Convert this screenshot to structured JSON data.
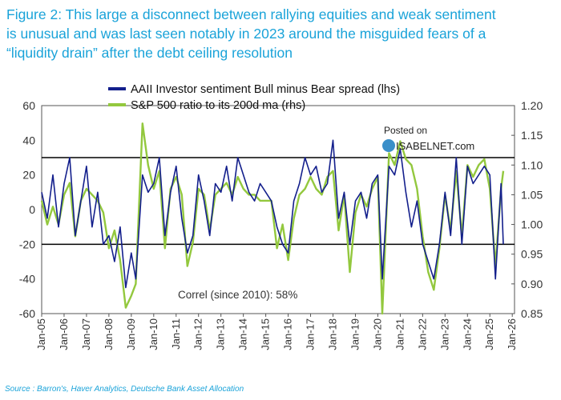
{
  "title_lines": [
    "Figure 2: This large a disconnect between rallying equities and weak sentiment",
    "is unusual and was last seen notably in 2023 around the misguided fears of a",
    "“liquidity drain” after the debt ceiling resolution"
  ],
  "source": "Source : Barron's, Haver Analytics, Deutsche Bank Asset Allocation",
  "watermark": {
    "line1": "Posted on",
    "line2": "ISABELNET.com"
  },
  "colors": {
    "title": "#1aa3d9",
    "bull_bear": "#131f8c",
    "sp500": "#93c83e",
    "ref_line": "#000000"
  },
  "chart_data": {
    "type": "line",
    "x_tick_labels": [
      "Jan-05",
      "Jan-06",
      "Jan-07",
      "Jan-08",
      "Jan-09",
      "Jan-10",
      "Jan-11",
      "Jan-12",
      "Jan-13",
      "Jan-14",
      "Jan-15",
      "Jan-16",
      "Jan-17",
      "Jan-18",
      "Jan-19",
      "Jan-20",
      "Jan-21",
      "Jan-22",
      "Jan-23",
      "Jan-24",
      "Jan-25",
      "Jan-26"
    ],
    "xlim": [
      2005,
      2026.1
    ],
    "y_left": {
      "lim": [
        -60,
        60
      ],
      "ticks": [
        "60",
        "40",
        "20",
        "0",
        "-20",
        "-40",
        "-60"
      ],
      "tick_values": [
        60,
        40,
        20,
        0,
        -20,
        -40,
        -60
      ]
    },
    "y_right": {
      "lim": [
        0.85,
        1.2
      ],
      "ticks": [
        "1.20",
        "1.15",
        "1.10",
        "1.05",
        "1.00",
        "0.95",
        "0.90",
        "0.85"
      ],
      "tick_values": [
        1.2,
        1.15,
        1.1,
        1.05,
        1.0,
        0.95,
        0.9,
        0.85
      ]
    },
    "reference_lines_left": [
      30,
      -20
    ],
    "annotation": "Correl (since 2010): 58%",
    "series": [
      {
        "name": "AAII Investor sentiment Bull minus Bear spread (lhs)",
        "axis": "left",
        "x": [
          2005.0,
          2005.25,
          2005.5,
          2005.75,
          2006.0,
          2006.25,
          2006.5,
          2006.75,
          2007.0,
          2007.25,
          2007.5,
          2007.75,
          2008.0,
          2008.25,
          2008.5,
          2008.75,
          2009.0,
          2009.2,
          2009.5,
          2009.75,
          2010.0,
          2010.25,
          2010.5,
          2010.75,
          2011.0,
          2011.25,
          2011.5,
          2011.75,
          2012.0,
          2012.25,
          2012.5,
          2012.75,
          2013.0,
          2013.25,
          2013.5,
          2013.75,
          2014.0,
          2014.25,
          2014.5,
          2014.75,
          2015.0,
          2015.25,
          2015.5,
          2015.75,
          2016.0,
          2016.25,
          2016.5,
          2016.75,
          2017.0,
          2017.25,
          2017.5,
          2017.75,
          2018.0,
          2018.25,
          2018.5,
          2018.75,
          2019.0,
          2019.25,
          2019.5,
          2019.75,
          2020.0,
          2020.2,
          2020.5,
          2020.75,
          2021.0,
          2021.25,
          2021.5,
          2021.75,
          2022.0,
          2022.25,
          2022.5,
          2022.75,
          2023.0,
          2023.25,
          2023.5,
          2023.75,
          2024.0,
          2024.25,
          2024.5,
          2024.75,
          2025.0,
          2025.25,
          2025.5,
          2025.6
        ],
        "values": [
          10,
          -5,
          20,
          -10,
          15,
          30,
          -15,
          5,
          25,
          -10,
          10,
          -20,
          -15,
          -30,
          -10,
          -45,
          -25,
          -40,
          20,
          10,
          15,
          30,
          -15,
          10,
          25,
          -5,
          -25,
          -15,
          20,
          5,
          -15,
          15,
          10,
          25,
          5,
          30,
          20,
          10,
          5,
          15,
          10,
          5,
          -10,
          -20,
          -25,
          5,
          15,
          30,
          20,
          25,
          10,
          15,
          40,
          -5,
          10,
          -20,
          5,
          10,
          -5,
          15,
          20,
          -40,
          25,
          20,
          35,
          10,
          -10,
          5,
          -20,
          -30,
          -40,
          -20,
          10,
          -15,
          30,
          -20,
          25,
          15,
          20,
          25,
          20,
          -40,
          15,
          -20
        ]
      },
      {
        "name": "S&P 500 ratio to its 200d ma (rhs)",
        "axis": "right",
        "x": [
          2005.0,
          2005.25,
          2005.5,
          2005.75,
          2006.0,
          2006.25,
          2006.5,
          2006.75,
          2007.0,
          2007.25,
          2007.5,
          2007.75,
          2008.0,
          2008.25,
          2008.5,
          2008.75,
          2009.0,
          2009.2,
          2009.5,
          2009.75,
          2010.0,
          2010.25,
          2010.5,
          2010.75,
          2011.0,
          2011.25,
          2011.5,
          2011.75,
          2012.0,
          2012.25,
          2012.5,
          2012.75,
          2013.0,
          2013.25,
          2013.5,
          2013.75,
          2014.0,
          2014.25,
          2014.5,
          2014.75,
          2015.0,
          2015.25,
          2015.5,
          2015.75,
          2016.0,
          2016.25,
          2016.5,
          2016.75,
          2017.0,
          2017.25,
          2017.5,
          2017.75,
          2018.0,
          2018.25,
          2018.5,
          2018.75,
          2019.0,
          2019.25,
          2019.5,
          2019.75,
          2020.0,
          2020.2,
          2020.5,
          2020.75,
          2021.0,
          2021.25,
          2021.5,
          2021.75,
          2022.0,
          2022.25,
          2022.5,
          2022.75,
          2023.0,
          2023.25,
          2023.5,
          2023.75,
          2024.0,
          2024.25,
          2024.5,
          2024.75,
          2025.0,
          2025.25,
          2025.5,
          2025.6
        ],
        "values": [
          1.04,
          1.0,
          1.03,
          1.0,
          1.05,
          1.07,
          0.98,
          1.04,
          1.06,
          1.05,
          1.04,
          1.02,
          0.96,
          0.99,
          0.94,
          0.86,
          0.88,
          0.9,
          1.17,
          1.1,
          1.06,
          1.09,
          0.96,
          1.06,
          1.08,
          1.05,
          0.93,
          0.97,
          1.06,
          1.05,
          0.99,
          1.05,
          1.06,
          1.07,
          1.05,
          1.08,
          1.06,
          1.05,
          1.05,
          1.04,
          1.04,
          1.04,
          0.96,
          1.0,
          0.94,
          1.01,
          1.05,
          1.06,
          1.08,
          1.06,
          1.05,
          1.08,
          1.09,
          0.99,
          1.05,
          0.92,
          1.02,
          1.05,
          1.03,
          1.06,
          1.08,
          0.85,
          1.12,
          1.1,
          1.14,
          1.11,
          1.1,
          1.06,
          0.98,
          0.92,
          0.89,
          0.96,
          1.05,
          0.99,
          1.09,
          0.98,
          1.1,
          1.08,
          1.1,
          1.11,
          1.06,
          0.93,
          1.06,
          1.09
        ]
      }
    ]
  }
}
